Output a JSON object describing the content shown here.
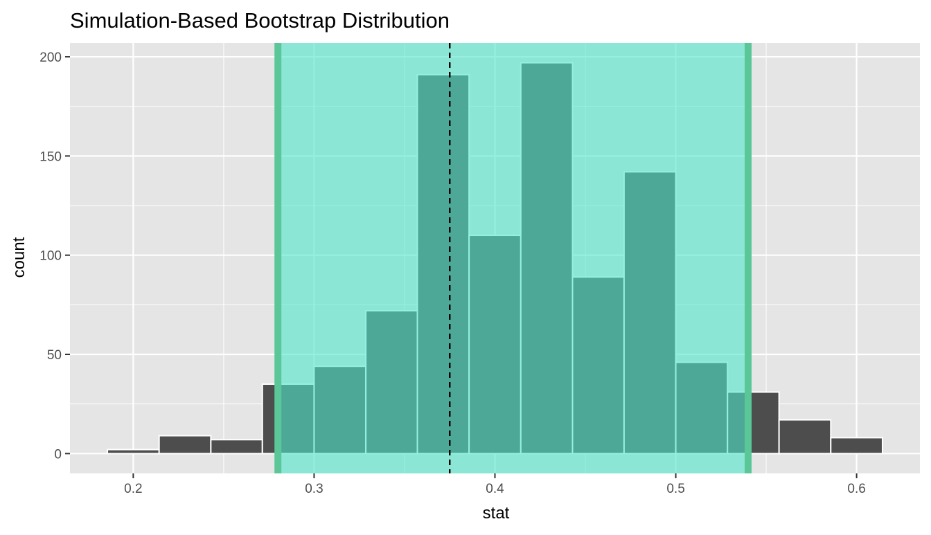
{
  "chart_data": {
    "type": "bar",
    "title": "Simulation-Based Bootstrap Distribution",
    "xlabel": "stat",
    "ylabel": "count",
    "xlim": [
      0.165,
      0.635
    ],
    "ylim": [
      -10,
      207
    ],
    "x_ticks": [
      0.2,
      0.3,
      0.4,
      0.5,
      0.6
    ],
    "x_tick_labels": [
      "0.2",
      "0.3",
      "0.4",
      "0.5",
      "0.6"
    ],
    "y_ticks": [
      0,
      50,
      100,
      150,
      200
    ],
    "y_tick_labels": [
      "0",
      "50",
      "100",
      "150",
      "200"
    ],
    "grid": true,
    "bins": [
      {
        "x0": 0.1857,
        "x1": 0.2143,
        "count": 2
      },
      {
        "x0": 0.2143,
        "x1": 0.2429,
        "count": 9
      },
      {
        "x0": 0.2429,
        "x1": 0.2714,
        "count": 7
      },
      {
        "x0": 0.2714,
        "x1": 0.3,
        "count": 35
      },
      {
        "x0": 0.3,
        "x1": 0.3286,
        "count": 44
      },
      {
        "x0": 0.3286,
        "x1": 0.3571,
        "count": 72
      },
      {
        "x0": 0.3571,
        "x1": 0.3857,
        "count": 191
      },
      {
        "x0": 0.3857,
        "x1": 0.4143,
        "count": 110
      },
      {
        "x0": 0.4143,
        "x1": 0.4429,
        "count": 197
      },
      {
        "x0": 0.4429,
        "x1": 0.4714,
        "count": 89
      },
      {
        "x0": 0.4714,
        "x1": 0.5,
        "count": 142
      },
      {
        "x0": 0.5,
        "x1": 0.5286,
        "count": 46
      },
      {
        "x0": 0.5286,
        "x1": 0.5571,
        "count": 31
      },
      {
        "x0": 0.5571,
        "x1": 0.5857,
        "count": 17
      },
      {
        "x0": 0.5857,
        "x1": 0.6143,
        "count": 8
      }
    ],
    "interval": {
      "lower": 0.28,
      "upper": 0.54
    },
    "point_estimate": 0.375,
    "colors": {
      "panel": "#e5e5e5",
      "grid": "#ffffff",
      "bar_fill": "#4d4d4d",
      "bar_stroke": "#ffffff",
      "interval_fill": "#4ee6cc",
      "interval_opacity": 0.6,
      "interval_line": "#5bc799",
      "point_estimate_line": "#000000"
    }
  }
}
